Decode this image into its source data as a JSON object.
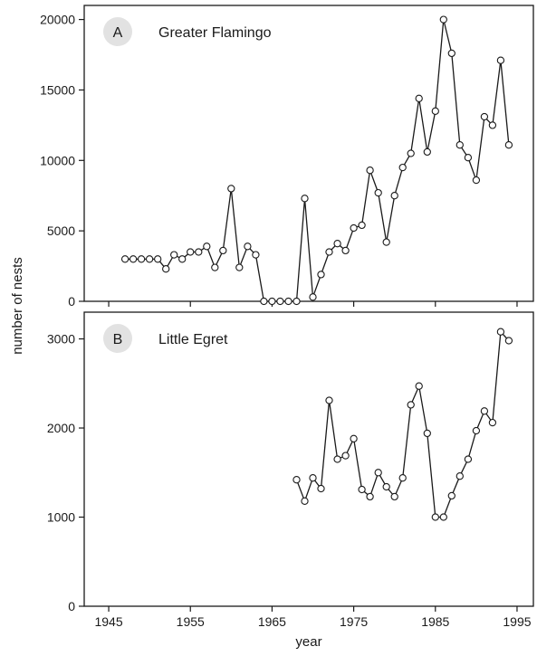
{
  "chart_data": [
    {
      "type": "line",
      "panel_label": "A",
      "title": "Greater Flamingo",
      "xlabel": "",
      "ylabel": "",
      "xlim": [
        1942,
        1997
      ],
      "ylim": [
        0,
        21000
      ],
      "yticks": [
        0,
        5000,
        10000,
        15000,
        20000
      ],
      "grid": false,
      "series": [
        {
          "x": [
            1947,
            1948,
            1949,
            1950,
            1951,
            1952,
            1953,
            1954,
            1955,
            1956,
            1957,
            1958,
            1959,
            1960,
            1961,
            1962,
            1963,
            1964,
            1965,
            1966,
            1967,
            1968,
            1969,
            1970,
            1971,
            1972,
            1973,
            1974,
            1975,
            1976,
            1977,
            1978,
            1979,
            1980,
            1981,
            1982,
            1983,
            1984,
            1985,
            1986,
            1987,
            1988,
            1989,
            1990,
            1991,
            1992,
            1993,
            1994
          ],
          "y": [
            3000,
            3000,
            3000,
            3000,
            3000,
            2300,
            3300,
            3000,
            3500,
            3500,
            3900,
            2400,
            3600,
            8000,
            2400,
            3900,
            3300,
            0,
            0,
            0,
            0,
            0,
            7300,
            300,
            1900,
            3500,
            4100,
            3600,
            5200,
            5400,
            9300,
            7700,
            4200,
            7500,
            9500,
            10500,
            14400,
            10600,
            13500,
            20000,
            17600,
            11100,
            10200,
            8600,
            13100,
            12500,
            17100,
            11100
          ]
        }
      ]
    },
    {
      "type": "line",
      "panel_label": "B",
      "title": "Little Egret",
      "xlabel": "year",
      "ylabel": "number of nests",
      "xlim": [
        1942,
        1997
      ],
      "ylim": [
        0,
        3300
      ],
      "yticks": [
        0,
        1000,
        2000,
        3000
      ],
      "xticks": [
        1945,
        1955,
        1965,
        1975,
        1985,
        1995
      ],
      "grid": false,
      "series": [
        {
          "x": [
            1968,
            1969,
            1970,
            1971,
            1972,
            1973,
            1974,
            1975,
            1976,
            1977,
            1978,
            1979,
            1980,
            1981,
            1982,
            1983,
            1984,
            1985,
            1986,
            1987,
            1988,
            1989,
            1990,
            1991,
            1992,
            1993,
            1994
          ],
          "y": [
            1420,
            1180,
            1440,
            1320,
            2310,
            1650,
            1690,
            1880,
            1310,
            1230,
            1500,
            1340,
            1230,
            1440,
            2260,
            2470,
            1940,
            1000,
            1000,
            1240,
            1460,
            1650,
            1970,
            2190,
            2060,
            3080,
            2980
          ]
        }
      ]
    }
  ]
}
